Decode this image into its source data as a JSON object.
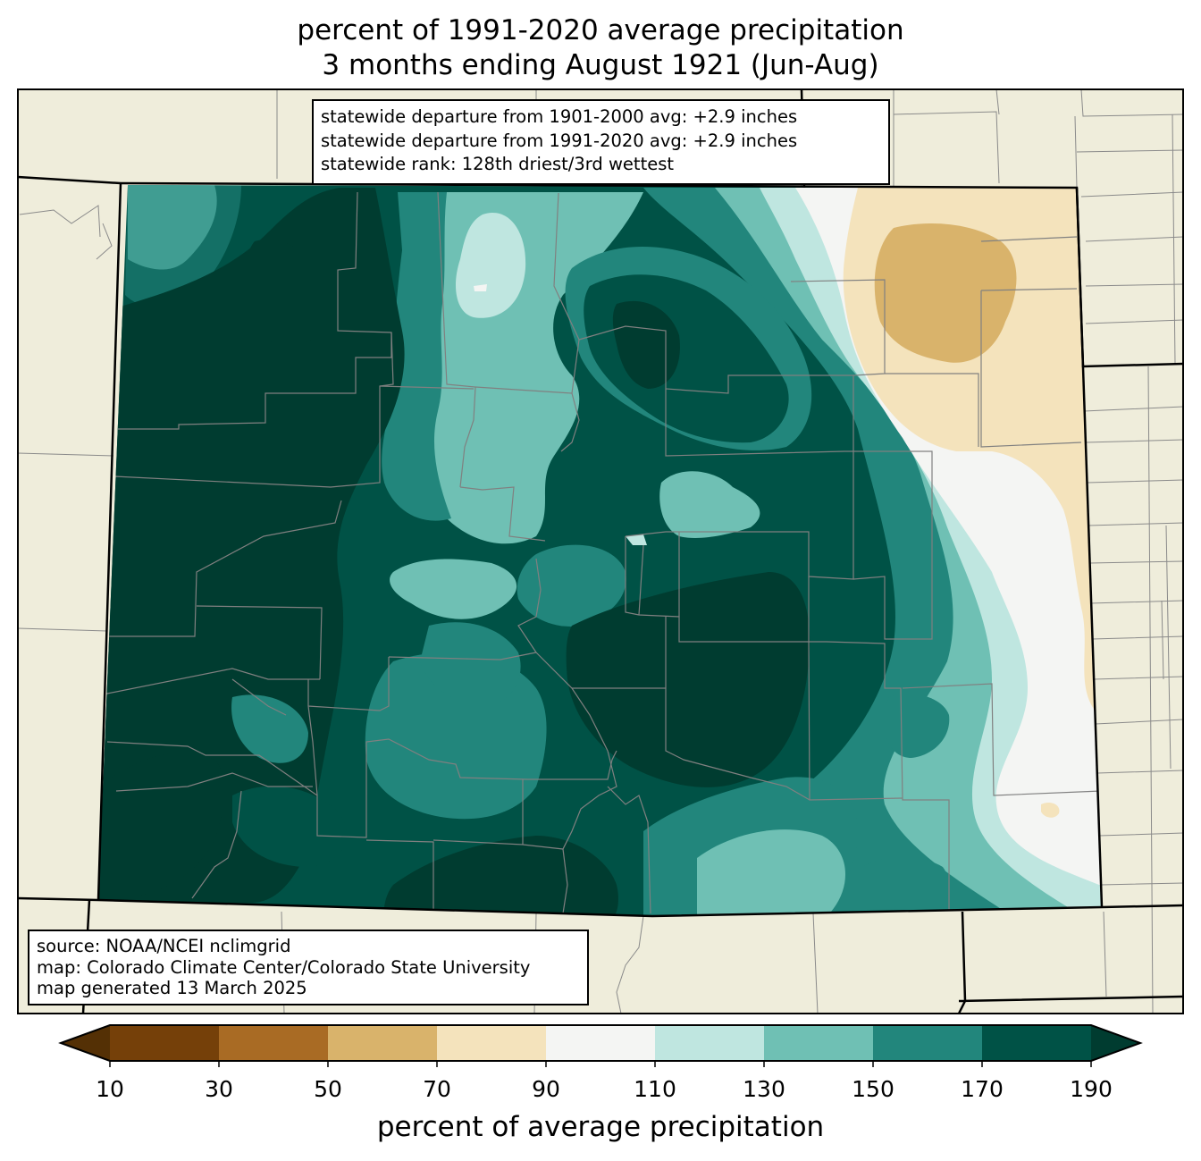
{
  "title": {
    "line1": "percent of 1991-2020 average precipitation",
    "line2": "3 months ending August 1921 (Jun-Aug)"
  },
  "stats_box": {
    "line1": "statewide departure from 1901-2000 avg: +2.9 inches",
    "line2": "statewide departure from 1991-2020 avg: +2.9 inches",
    "line3": "statewide rank: 128th driest/3rd wettest"
  },
  "source_box": {
    "line1": "source: NOAA/NCEI nclimgrid",
    "line2": "map: Colorado Climate Center/Colorado State University",
    "line3": "map generated 13 March 2025"
  },
  "colorbar": {
    "label": "percent of average precipitation",
    "ticks": [
      "10",
      "30",
      "50",
      "70",
      "90",
      "110",
      "130",
      "150",
      "170",
      "190"
    ],
    "under_color": "#543005",
    "over_color": "#003c30",
    "colors": [
      "#754009",
      "#a96b24",
      "#d9b36b",
      "#f4e3bc",
      "#f4f5f3",
      "#bfe6e0",
      "#6fc0b4",
      "#22867c",
      "#005246"
    ]
  },
  "map": {
    "background_color": "#efeddb",
    "state": "Colorado",
    "fill_classes_present": [
      "50-70",
      "70-90",
      "90-110",
      "110-130",
      "130-150",
      "150-170",
      "170-190",
      ">190"
    ]
  }
}
